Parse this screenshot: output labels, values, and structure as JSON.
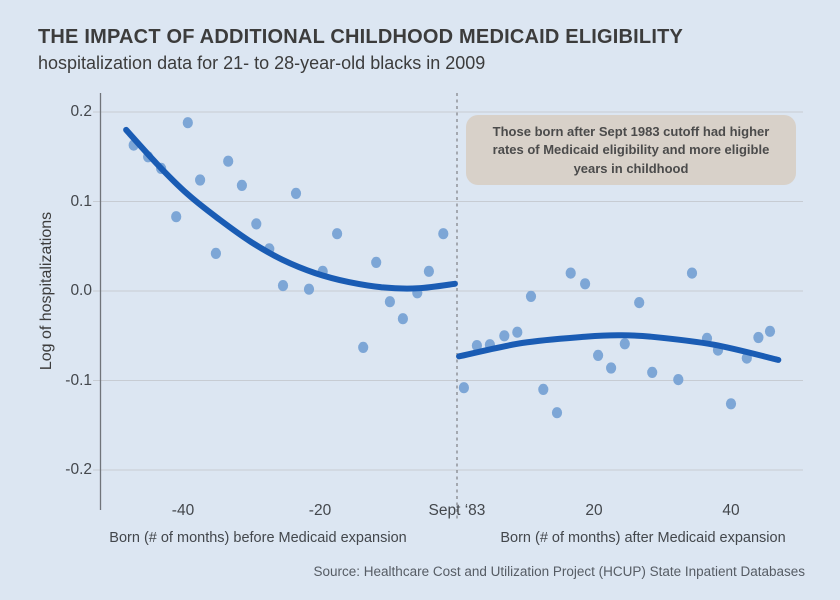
{
  "chart_data": {
    "type": "scatter",
    "title": "THE IMPACT OF ADDITIONAL CHILDHOOD MEDICAID ELIGIBILITY",
    "subtitle": "hospitalization data for 21- to 28-year-old blacks in 2009",
    "ylabel": "Log of hospitalizations",
    "xlim": [
      -52,
      50.5
    ],
    "ylim": [
      -0.245,
      0.22
    ],
    "grid": true,
    "legend": "none",
    "x_ticks": [
      {
        "value": -40,
        "label": "-40"
      },
      {
        "value": -20,
        "label": "-20"
      },
      {
        "value": 0,
        "label": "Sept ‘83"
      },
      {
        "value": 20,
        "label": "20"
      },
      {
        "value": 40,
        "label": "40"
      }
    ],
    "y_ticks": [
      {
        "value": 0.2,
        "label": "0.2"
      },
      {
        "value": 0.1,
        "label": "0.1"
      },
      {
        "value": 0.0,
        "label": "0.0"
      },
      {
        "value": -0.1,
        "label": "-0.1"
      },
      {
        "value": -0.2,
        "label": "-0.2"
      }
    ],
    "cutoff_x": 0,
    "x_caption_left": "Born (# of months) before Medicaid expansion",
    "x_caption_right": "Born (# of months) after Medicaid expansion",
    "annotation": {
      "lines": [
        "Those born after Sept 1983 cutoff had higher",
        "rates of Medicaid eligibility and more eligible",
        "years in childhood"
      ]
    },
    "series": [
      {
        "name": "hospitalizations before cutoff",
        "type": "scatter",
        "points": [
          [
            -47.2,
            0.163
          ],
          [
            -45.1,
            0.15
          ],
          [
            -43.2,
            0.137
          ],
          [
            -41.0,
            0.083
          ],
          [
            -39.3,
            0.188
          ],
          [
            -37.5,
            0.124
          ],
          [
            -35.2,
            0.042
          ],
          [
            -33.4,
            0.145
          ],
          [
            -31.4,
            0.118
          ],
          [
            -29.3,
            0.075
          ],
          [
            -27.4,
            0.047
          ],
          [
            -25.4,
            0.006
          ],
          [
            -23.5,
            0.109
          ],
          [
            -21.6,
            0.002
          ],
          [
            -19.6,
            0.022
          ],
          [
            -17.5,
            0.064
          ],
          [
            -13.7,
            -0.063
          ],
          [
            -11.8,
            0.032
          ],
          [
            -9.8,
            -0.012
          ],
          [
            -7.9,
            -0.031
          ],
          [
            -5.8,
            -0.002
          ],
          [
            -4.1,
            0.022
          ],
          [
            -2.0,
            0.064
          ]
        ]
      },
      {
        "name": "hospitalizations after cutoff",
        "type": "scatter",
        "points": [
          [
            1.0,
            -0.108
          ],
          [
            2.9,
            -0.061
          ],
          [
            4.8,
            -0.06
          ],
          [
            6.9,
            -0.05
          ],
          [
            8.8,
            -0.046
          ],
          [
            10.8,
            -0.006
          ],
          [
            12.6,
            -0.11
          ],
          [
            14.6,
            -0.136
          ],
          [
            16.6,
            0.02
          ],
          [
            18.7,
            0.008
          ],
          [
            20.6,
            -0.072
          ],
          [
            22.5,
            -0.086
          ],
          [
            24.5,
            -0.059
          ],
          [
            26.6,
            -0.013
          ],
          [
            28.5,
            -0.091
          ],
          [
            32.3,
            -0.099
          ],
          [
            34.3,
            0.02
          ],
          [
            36.5,
            -0.053
          ],
          [
            38.1,
            -0.066
          ],
          [
            40.0,
            -0.126
          ],
          [
            42.3,
            -0.075
          ],
          [
            44.0,
            -0.052
          ],
          [
            45.7,
            -0.045
          ]
        ]
      },
      {
        "name": "fitted trend before cutoff",
        "type": "line",
        "points": [
          [
            -48.3,
            0.18
          ],
          [
            -43.8,
            0.142
          ],
          [
            -39.3,
            0.108
          ],
          [
            -34.7,
            0.08
          ],
          [
            -30.1,
            0.055
          ],
          [
            -25.5,
            0.035
          ],
          [
            -20.7,
            0.02
          ],
          [
            -15.8,
            0.01
          ],
          [
            -10.8,
            0.004
          ],
          [
            -5.7,
            0.003
          ],
          [
            -0.3,
            0.008
          ]
        ]
      },
      {
        "name": "fitted trend after cutoff",
        "type": "line",
        "points": [
          [
            0.3,
            -0.073
          ],
          [
            9.6,
            -0.058
          ],
          [
            18.9,
            -0.051
          ],
          [
            23.5,
            -0.0495
          ],
          [
            28.2,
            -0.051
          ],
          [
            37.5,
            -0.06
          ],
          [
            46.9,
            -0.077
          ]
        ]
      }
    ]
  },
  "source": {
    "text": "Source: Healthcare Cost and Utilization Project (HCUP) State Inpatient Databases"
  },
  "colors": {
    "background": "#dce6f2",
    "dot": "#7da6d6",
    "fit_line": "#1a5cb4",
    "grid": "#c7ccd3",
    "axis": "#70747a",
    "cutoff_line": "#85888d",
    "annotation_bg": "#d8d1c9",
    "annotation_text": "#4b4b4b",
    "heading_text": "#3c3c3c",
    "tick_text": "#43474c",
    "source_text": "#565c64"
  }
}
